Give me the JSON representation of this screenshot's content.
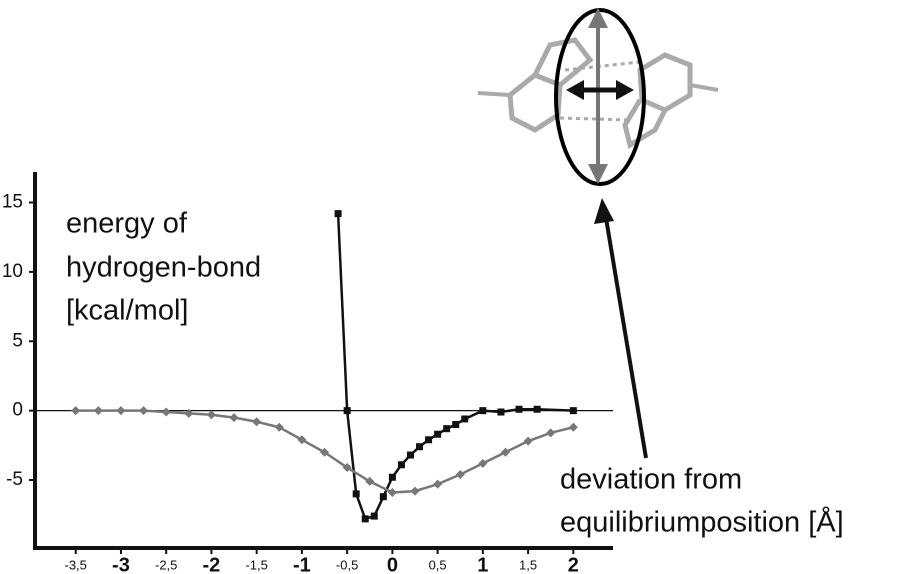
{
  "chart_data": {
    "type": "line",
    "ylabel": [
      "energy of",
      "hydrogen-bond",
      "[kcal/mol]"
    ],
    "xlabel": [
      "deviation from",
      "equilibriumposition [Å]"
    ],
    "xlim": [
      -3.95,
      2.35
    ],
    "ylim": [
      -9.9,
      17.2
    ],
    "xticks": [
      {
        "value": -3.5,
        "label": "-3,5"
      },
      -3,
      {
        "value": -2.5,
        "label": "-2,5"
      },
      -2,
      {
        "value": -1.5,
        "label": "-1,5"
      },
      -1,
      {
        "value": -0.5,
        "label": "-0,5"
      },
      0,
      {
        "value": 0.5,
        "label": "0,5"
      },
      1,
      {
        "value": 1.5,
        "label": "1,5"
      },
      2
    ],
    "yticks": [
      -5,
      0,
      5,
      10,
      15
    ],
    "series": [
      {
        "color": "#111111",
        "marker": "square",
        "x": [
          -0.6,
          -0.5,
          -0.4,
          -0.3,
          -0.2,
          -0.1,
          0,
          0.1,
          0.2,
          0.3,
          0.4,
          0.5,
          0.6,
          0.7,
          0.8,
          1.0,
          1.2,
          1.4,
          1.6,
          2.0
        ],
        "values": [
          14.2,
          0,
          -6.0,
          -7.8,
          -7.6,
          -6.2,
          -4.8,
          -3.9,
          -3.2,
          -2.6,
          -2.1,
          -1.7,
          -1.3,
          -1.0,
          -0.6,
          0,
          -0.1,
          0.1,
          0.1,
          0
        ]
      },
      {
        "color": "#777777",
        "marker": "diamond",
        "x": [
          -3.5,
          -3.25,
          -3,
          -2.75,
          -2.5,
          -2.25,
          -2,
          -1.75,
          -1.5,
          -1.25,
          -1,
          -0.75,
          -0.5,
          -0.25,
          0,
          0.25,
          0.5,
          0.75,
          1,
          1.25,
          1.5,
          1.75,
          2
        ],
        "values": [
          0,
          0,
          0,
          0,
          -0.1,
          -0.2,
          -0.3,
          -0.5,
          -0.8,
          -1.2,
          -2.1,
          -3.0,
          -4.1,
          -5.1,
          -5.9,
          -5.8,
          -5.3,
          -4.6,
          -3.8,
          -3.0,
          -2.2,
          -1.6,
          -1.2
        ]
      }
    ]
  }
}
